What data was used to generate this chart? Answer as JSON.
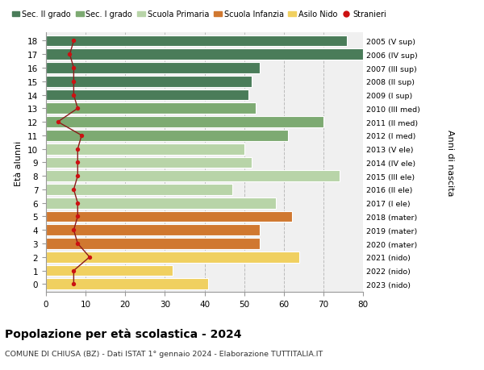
{
  "ages": [
    18,
    17,
    16,
    15,
    14,
    13,
    12,
    11,
    10,
    9,
    8,
    7,
    6,
    5,
    4,
    3,
    2,
    1,
    0
  ],
  "years": [
    "2005 (V sup)",
    "2006 (IV sup)",
    "2007 (III sup)",
    "2008 (II sup)",
    "2009 (I sup)",
    "2010 (III med)",
    "2011 (II med)",
    "2012 (I med)",
    "2013 (V ele)",
    "2014 (IV ele)",
    "2015 (III ele)",
    "2016 (II ele)",
    "2017 (I ele)",
    "2018 (mater)",
    "2019 (mater)",
    "2020 (mater)",
    "2021 (nido)",
    "2022 (nido)",
    "2023 (nido)"
  ],
  "bar_values": [
    76,
    80,
    54,
    52,
    51,
    53,
    70,
    61,
    50,
    52,
    74,
    47,
    58,
    62,
    54,
    54,
    64,
    32,
    41
  ],
  "bar_colors": [
    "#4a7c59",
    "#4a7c59",
    "#4a7c59",
    "#4a7c59",
    "#4a7c59",
    "#7daa72",
    "#7daa72",
    "#7daa72",
    "#b8d4a8",
    "#b8d4a8",
    "#b8d4a8",
    "#b8d4a8",
    "#b8d4a8",
    "#d07830",
    "#d07830",
    "#d07830",
    "#f0d060",
    "#f0d060",
    "#f0d060"
  ],
  "stranieri": [
    7,
    6,
    7,
    7,
    7,
    8,
    3,
    9,
    8,
    8,
    8,
    7,
    8,
    8,
    7,
    8,
    11,
    7,
    7
  ],
  "legend_labels": [
    "Sec. II grado",
    "Sec. I grado",
    "Scuola Primaria",
    "Scuola Infanzia",
    "Asilo Nido",
    "Stranieri"
  ],
  "legend_colors": [
    "#4a7c59",
    "#7daa72",
    "#b8d4a8",
    "#d07830",
    "#f0d060",
    "#cc1111"
  ],
  "title": "Popolazione per età scolastica - 2024",
  "subtitle": "COMUNE DI CHIUSA (BZ) - Dati ISTAT 1° gennaio 2024 - Elaborazione TUTTITALIA.IT",
  "ylabel_left": "Età alunni",
  "ylabel_right": "Anni di nascita",
  "xlim": [
    0,
    80
  ],
  "xticks": [
    0,
    10,
    20,
    30,
    40,
    50,
    60,
    70,
    80
  ],
  "bg_color": "#ffffff",
  "plot_bg": "#f0f0f0",
  "bar_height": 0.82
}
